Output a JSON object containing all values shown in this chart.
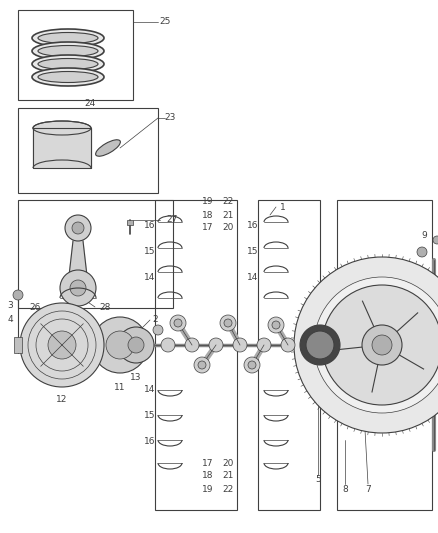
{
  "bg_color": "#ffffff",
  "lc": "#404040",
  "fig_w": 4.38,
  "fig_h": 5.33,
  "dpi": 100
}
